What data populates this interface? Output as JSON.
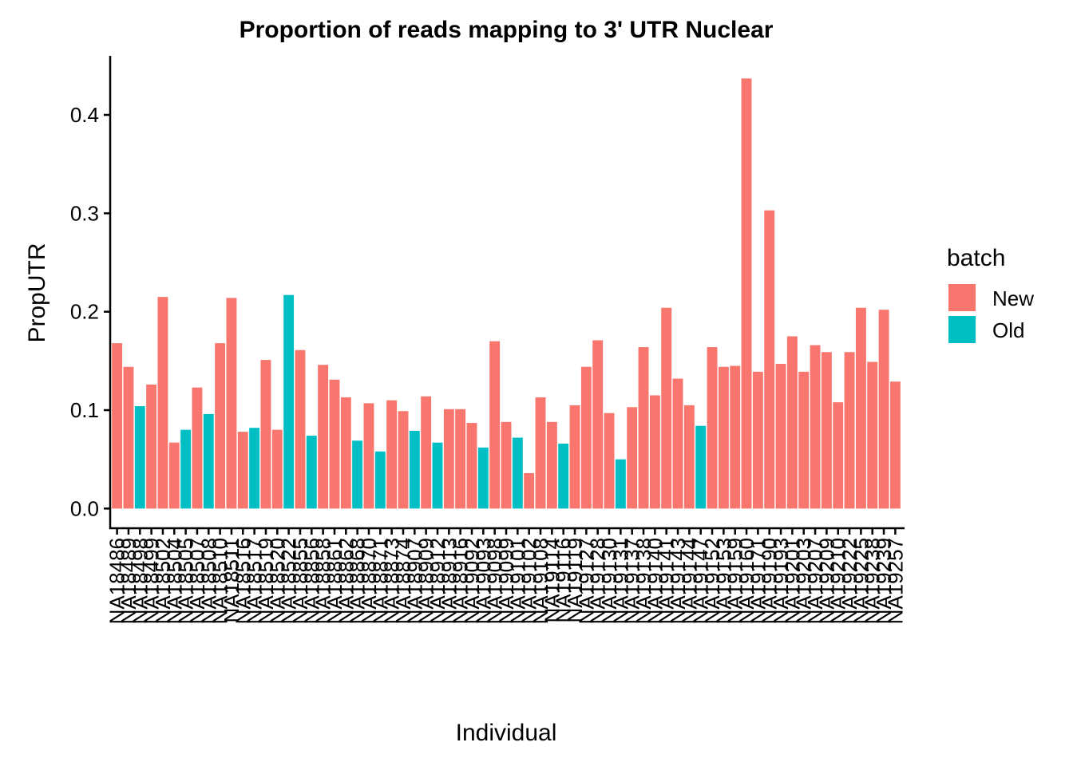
{
  "chart_data": {
    "type": "bar",
    "title": "Proportion of reads mapping to 3' UTR Nuclear",
    "x_label": "Individual",
    "y_label": "PropUTR",
    "legend_title": "batch",
    "categories": [
      "NA18486",
      "NA18489",
      "NA18498",
      "NA18499",
      "NA18502",
      "NA18504",
      "NA18505",
      "NA18507",
      "NA18508",
      "NA18510",
      "NA18511",
      "NA18516",
      "NA18517",
      "NA18519",
      "NA18520",
      "NA18522",
      "NA18855",
      "NA18856",
      "NA18858",
      "NA18861",
      "NA18862",
      "NA18868",
      "NA18870",
      "NA18871",
      "NA18873",
      "NA18874",
      "NA18907",
      "NA18909",
      "NA18912",
      "NA18913",
      "NA18916",
      "NA19092",
      "NA19093",
      "NA19098",
      "NA19099",
      "NA19101",
      "NA19102",
      "NA19108",
      "NA19114",
      "NA19116",
      "NA19119",
      "NA19127",
      "NA19128",
      "NA19130",
      "NA19131",
      "NA19137",
      "NA19138",
      "NA19140",
      "NA19141",
      "NA19143",
      "NA19144",
      "NA19147",
      "NA19152",
      "NA19153",
      "NA19159",
      "NA19160",
      "NA19171",
      "NA19190",
      "NA19193",
      "NA19201",
      "NA19203",
      "NA19207",
      "NA19209",
      "NA19210",
      "NA19222",
      "NA19225",
      "NA19238",
      "NA19239",
      "NA19257"
    ],
    "series": [
      {
        "name": "New",
        "color": "#f8766d",
        "values": [
          0.168,
          0.144,
          null,
          0.126,
          0.215,
          0.067,
          null,
          0.123,
          null,
          0.168,
          0.214,
          0.078,
          null,
          0.151,
          0.08,
          null,
          0.161,
          null,
          0.146,
          0.131,
          0.113,
          null,
          0.107,
          null,
          0.11,
          0.099,
          null,
          0.114,
          null,
          0.101,
          0.101,
          0.087,
          null,
          0.17,
          0.088,
          null,
          0.036,
          0.113,
          0.088,
          null,
          0.105,
          0.144,
          0.171,
          0.097,
          null,
          0.103,
          0.164,
          0.115,
          0.204,
          0.132,
          0.105,
          null,
          0.164,
          0.144,
          0.145,
          0.437,
          0.139,
          0.303,
          0.147,
          0.175,
          0.139,
          0.166,
          0.159,
          0.108,
          0.159,
          0.204,
          0.149,
          0.202,
          0.129
        ]
      },
      {
        "name": "Old",
        "color": "#00bfc4",
        "values": [
          null,
          null,
          0.104,
          null,
          null,
          null,
          0.08,
          null,
          0.096,
          null,
          null,
          null,
          0.082,
          null,
          null,
          0.217,
          null,
          0.074,
          null,
          null,
          null,
          0.069,
          null,
          0.058,
          null,
          null,
          0.079,
          null,
          0.067,
          null,
          null,
          null,
          0.062,
          null,
          null,
          0.072,
          null,
          null,
          null,
          0.066,
          null,
          null,
          null,
          null,
          0.05,
          null,
          null,
          null,
          null,
          null,
          null,
          0.084,
          null,
          null,
          null,
          null,
          null,
          null,
          null,
          null,
          null,
          null,
          null,
          null,
          null,
          null,
          null,
          null,
          null
        ]
      }
    ],
    "ylim": [
      -0.02,
      0.46
    ],
    "yticks": [
      {
        "value": 0,
        "label": "0.0"
      },
      0.1,
      0.2,
      0.3,
      0.4
    ],
    "grid": false,
    "legend": "right"
  }
}
